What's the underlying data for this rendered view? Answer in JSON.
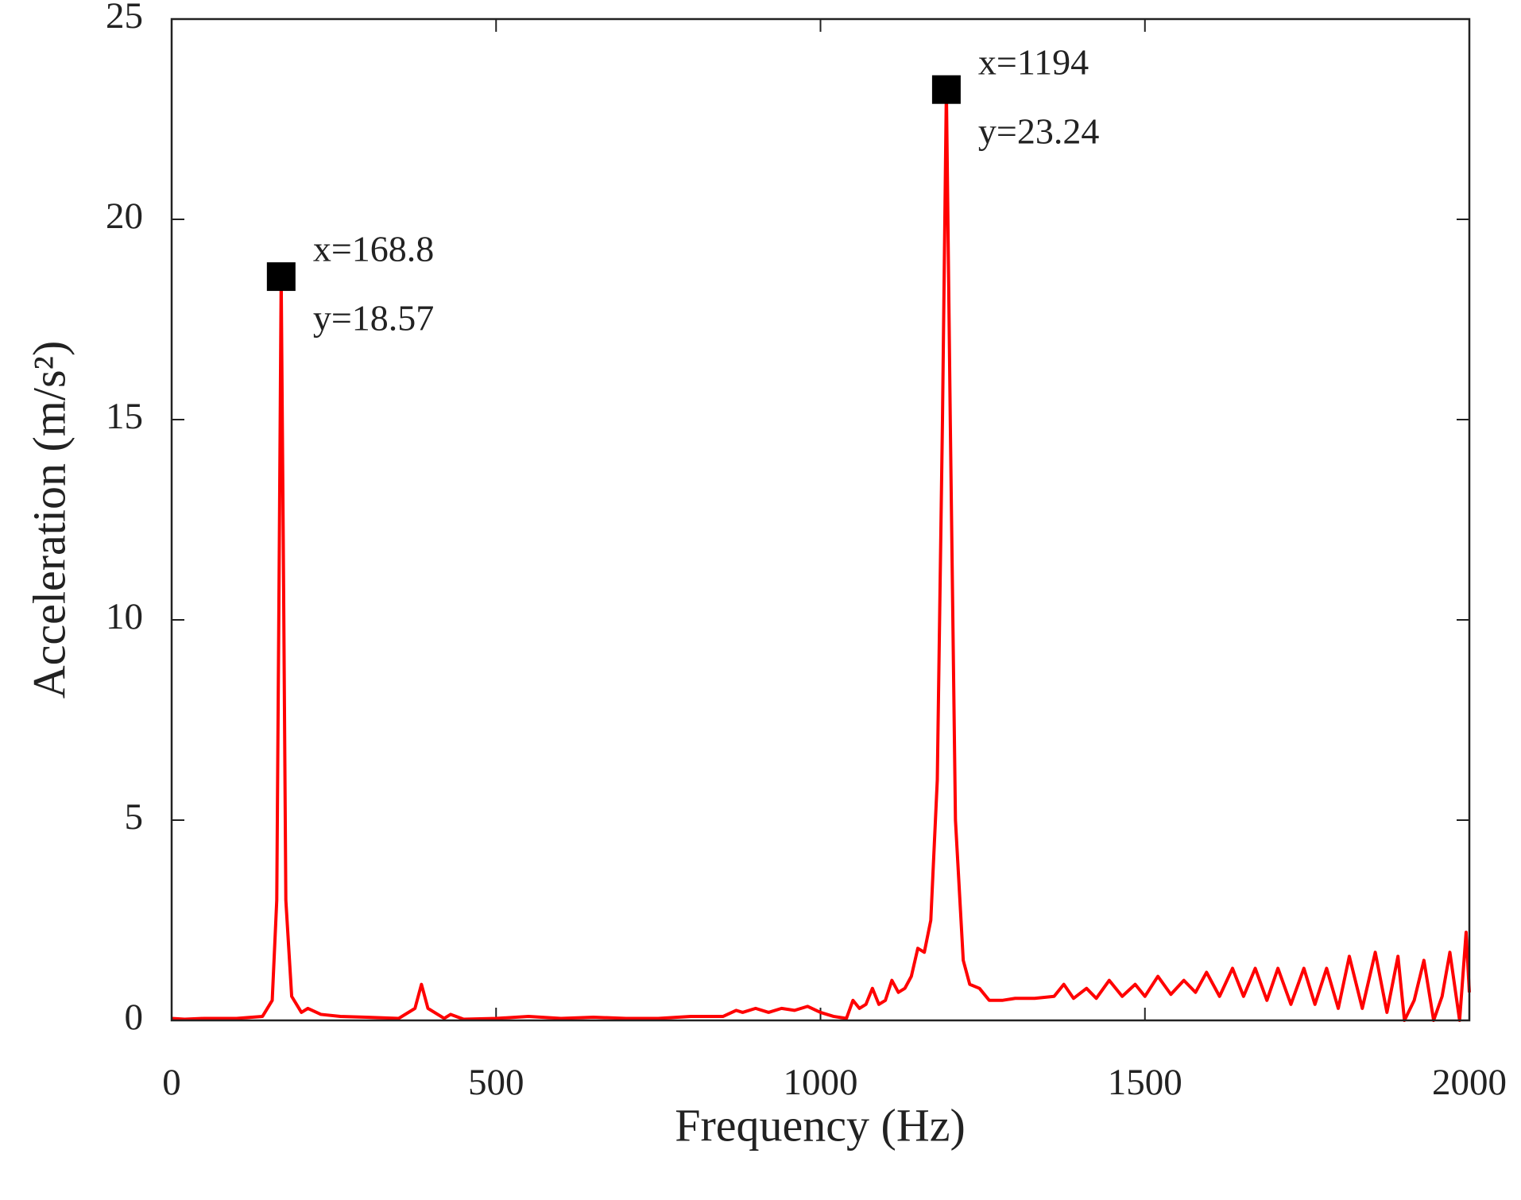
{
  "chart_data": {
    "type": "line",
    "xlabel": "Frequency (Hz)",
    "ylabel": "Acceleration (m/s²)",
    "xlim": [
      0,
      2000
    ],
    "ylim": [
      0,
      25
    ],
    "xticks": [
      0,
      500,
      1000,
      1500,
      2000
    ],
    "yticks": [
      0,
      5,
      10,
      15,
      20,
      25
    ],
    "x": [
      0,
      20,
      50,
      100,
      140,
      155,
      162,
      166,
      168.8,
      172,
      176,
      185,
      200,
      210,
      230,
      260,
      300,
      350,
      375,
      385,
      395,
      420,
      430,
      450,
      500,
      550,
      600,
      650,
      700,
      750,
      800,
      850,
      870,
      880,
      900,
      920,
      940,
      960,
      980,
      1000,
      1020,
      1040,
      1050,
      1060,
      1070,
      1080,
      1090,
      1100,
      1110,
      1120,
      1130,
      1140,
      1150,
      1160,
      1170,
      1180,
      1188,
      1194,
      1200,
      1208,
      1220,
      1230,
      1245,
      1260,
      1280,
      1300,
      1330,
      1360,
      1375,
      1390,
      1410,
      1425,
      1445,
      1465,
      1485,
      1500,
      1520,
      1540,
      1560,
      1578,
      1595,
      1615,
      1635,
      1652,
      1670,
      1688,
      1705,
      1725,
      1745,
      1762,
      1780,
      1798,
      1815,
      1835,
      1855,
      1873,
      1890,
      1900,
      1915,
      1930,
      1945,
      1958,
      1970,
      1985,
      1995,
      2000
    ],
    "series": [
      {
        "color": "#ff0000",
        "values": [
          0.05,
          0.03,
          0.05,
          0.05,
          0.1,
          0.5,
          3,
          12,
          18.57,
          12,
          3,
          0.6,
          0.2,
          0.3,
          0.15,
          0.1,
          0.08,
          0.05,
          0.3,
          0.9,
          0.3,
          0.05,
          0.15,
          0.03,
          0.05,
          0.1,
          0.05,
          0.08,
          0.05,
          0.05,
          0.1,
          0.1,
          0.25,
          0.2,
          0.3,
          0.2,
          0.3,
          0.25,
          0.35,
          0.2,
          0.1,
          0.05,
          0.5,
          0.3,
          0.4,
          0.8,
          0.4,
          0.5,
          1.0,
          0.7,
          0.8,
          1.1,
          1.8,
          1.7,
          2.5,
          6,
          15,
          23.24,
          15,
          5,
          1.5,
          0.9,
          0.8,
          0.5,
          0.5,
          0.55,
          0.55,
          0.6,
          0.9,
          0.55,
          0.8,
          0.55,
          1.0,
          0.6,
          0.9,
          0.6,
          1.1,
          0.65,
          1.0,
          0.7,
          1.2,
          0.6,
          1.3,
          0.6,
          1.3,
          0.5,
          1.3,
          0.4,
          1.3,
          0.4,
          1.3,
          0.3,
          1.6,
          0.3,
          1.7,
          0.2,
          1.6,
          0,
          0.5,
          1.5,
          0,
          0.6,
          1.7,
          0,
          2.2,
          0.7
        ]
      }
    ],
    "annotations": [
      {
        "x": 168.8,
        "y": 18.57,
        "text_x": "x=168.8",
        "text_y": "y=18.57"
      },
      {
        "x": 1194,
        "y": 23.24,
        "text_x": "x=1194",
        "text_y": "y=23.24"
      }
    ]
  }
}
